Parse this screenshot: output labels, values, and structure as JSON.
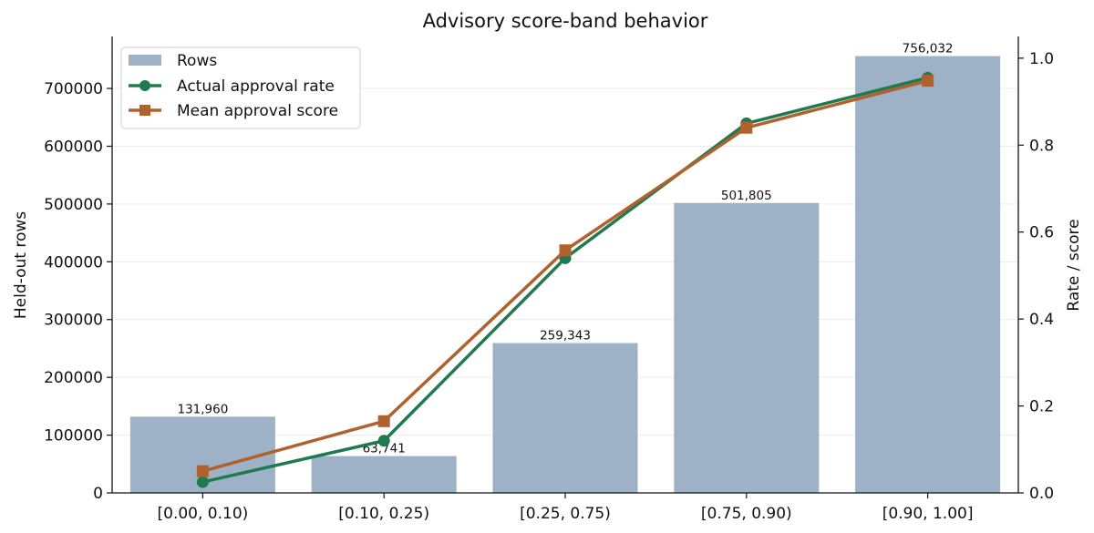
{
  "chart_data": {
    "type": "bar",
    "title": "Advisory score-band behavior",
    "xlabel": "",
    "ylabel": "Held-out rows",
    "y2label": "Rate / score",
    "categories": [
      "[0.00, 0.10)",
      "[0.10, 0.25)",
      "[0.25, 0.75)",
      "[0.75, 0.90)",
      "[0.90, 1.00]"
    ],
    "bars": {
      "name": "Rows",
      "values": [
        131960,
        63741,
        259343,
        501805,
        756032
      ],
      "labels": [
        "131,960",
        "63,741",
        "259,343",
        "501,805",
        "756,032"
      ],
      "color": "#9db2c7"
    },
    "series": [
      {
        "name": "Actual approval rate",
        "values": [
          0.025,
          0.12,
          0.54,
          0.85,
          0.955
        ],
        "color": "#217a4f",
        "marker": "circle",
        "axis": "right"
      },
      {
        "name": "Mean approval score",
        "values": [
          0.05,
          0.165,
          0.558,
          0.84,
          0.948
        ],
        "color": "#b0612e",
        "marker": "square",
        "axis": "right"
      }
    ],
    "ylim": [
      0,
      790000
    ],
    "y2lim": [
      0,
      1.05
    ],
    "yticks": [
      "0",
      "100000",
      "200000",
      "300000",
      "400000",
      "500000",
      "600000",
      "700000"
    ],
    "y2ticks": [
      "0.0",
      "0.2",
      "0.4",
      "0.6",
      "0.8",
      "1.0"
    ],
    "grid": true,
    "legend_position": "top-left"
  }
}
